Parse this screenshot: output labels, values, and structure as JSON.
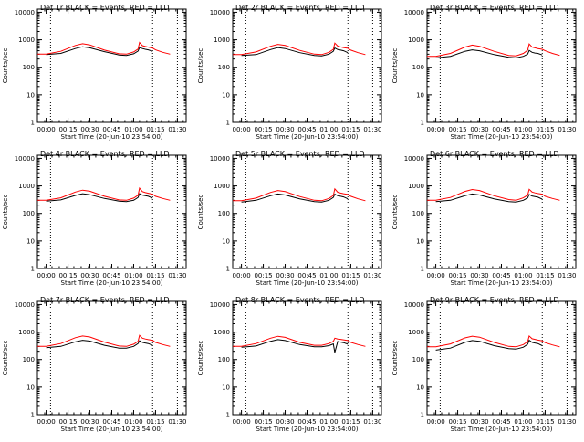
{
  "chart_data": [
    {
      "type": "line",
      "title": "Det 1r BLACK = Events, RED = LLD",
      "xlabel": "Start Time (20-Jun-10 23:54:00)",
      "ylabel": "Counts/sec",
      "xlim": [
        "23:54",
        "01:36"
      ],
      "ylim": [
        1,
        13000
      ],
      "yscale": "log",
      "x_ticks": [
        "00:00",
        "00:15",
        "00:30",
        "00:45",
        "01:00",
        "01:15",
        "01:30"
      ],
      "y_ticks": [
        "1",
        "10",
        "100",
        "1000",
        "10000"
      ],
      "vlines": [
        "00:03",
        "01:13",
        "01:30"
      ],
      "x": [
        "23:54",
        "00:00",
        "00:10",
        "00:20",
        "00:25",
        "00:30",
        "00:40",
        "00:50",
        "00:55",
        "01:00",
        "01:03",
        "01:04",
        "01:06",
        "01:08",
        "01:10",
        "01:13",
        "01:15",
        "01:20",
        "01:25"
      ],
      "series": [
        {
          "values": [
            null,
            290,
            320,
            480,
            560,
            510,
            370,
            280,
            270,
            310,
            390,
            520,
            480,
            450,
            430,
            380,
            null,
            null,
            null
          ]
        },
        {
          "values": [
            300,
            300,
            380,
            620,
            720,
            650,
            420,
            310,
            300,
            360,
            460,
            800,
            610,
            570,
            540,
            500,
            430,
            350,
            300
          ]
        }
      ]
    },
    {
      "type": "line",
      "title": "Det 2r BLACK = Events, RED = LLD",
      "xlabel": "Start Time (20-Jun-10 23:54:00)",
      "ylabel": "Counts/sec",
      "xlim": [
        "23:54",
        "01:36"
      ],
      "ylim": [
        1,
        13000
      ],
      "yscale": "log",
      "x_ticks": [
        "00:00",
        "00:15",
        "00:30",
        "00:45",
        "01:00",
        "01:15",
        "01:30"
      ],
      "y_ticks": [
        "1",
        "10",
        "100",
        "1000",
        "10000"
      ],
      "vlines": [
        "00:03",
        "01:13",
        "01:30"
      ],
      "x": [
        "23:54",
        "00:00",
        "00:10",
        "00:20",
        "00:25",
        "00:30",
        "00:40",
        "00:50",
        "00:55",
        "01:00",
        "01:03",
        "01:04",
        "01:06",
        "01:08",
        "01:10",
        "01:13",
        "01:15",
        "01:20",
        "01:25"
      ],
      "series": [
        {
          "values": [
            null,
            270,
            290,
            440,
            520,
            480,
            340,
            270,
            260,
            300,
            380,
            500,
            440,
            420,
            400,
            340,
            null,
            null,
            null
          ]
        },
        {
          "values": [
            290,
            290,
            360,
            580,
            680,
            620,
            410,
            300,
            290,
            350,
            450,
            760,
            590,
            550,
            520,
            490,
            420,
            340,
            290
          ]
        }
      ]
    },
    {
      "type": "line",
      "title": "Det 3r BLACK = Events, RED = LLD",
      "xlabel": "Start Time (20-Jun-10 23:54:00)",
      "ylabel": "Counts/sec",
      "xlim": [
        "23:54",
        "01:36"
      ],
      "ylim": [
        1,
        13000
      ],
      "yscale": "log",
      "x_ticks": [
        "00:00",
        "00:15",
        "00:30",
        "00:45",
        "01:00",
        "01:15",
        "01:30"
      ],
      "y_ticks": [
        "1",
        "10",
        "100",
        "1000",
        "10000"
      ],
      "vlines": [
        "00:03",
        "01:13",
        "01:30"
      ],
      "x": [
        "23:54",
        "00:00",
        "00:10",
        "00:20",
        "00:25",
        "00:30",
        "00:40",
        "00:50",
        "00:55",
        "01:00",
        "01:03",
        "01:04",
        "01:06",
        "01:08",
        "01:10",
        "01:13",
        "01:15",
        "01:20",
        "01:25"
      ],
      "series": [
        {
          "values": [
            null,
            220,
            250,
            380,
            430,
            400,
            290,
            230,
            220,
            250,
            300,
            410,
            350,
            330,
            320,
            280,
            null,
            null,
            null
          ]
        },
        {
          "values": [
            250,
            250,
            320,
            540,
            640,
            580,
            380,
            270,
            260,
            320,
            420,
            700,
            540,
            510,
            480,
            450,
            400,
            320,
            270
          ]
        }
      ]
    },
    {
      "type": "line",
      "title": "Det 4r BLACK = Events, RED = LLD",
      "xlabel": "Start Time (20-Jun-10 23:54:00)",
      "ylabel": "Counts/sec",
      "xlim": [
        "23:54",
        "01:36"
      ],
      "ylim": [
        1,
        13000
      ],
      "yscale": "log",
      "x_ticks": [
        "00:00",
        "00:15",
        "00:30",
        "00:45",
        "01:00",
        "01:15",
        "01:30"
      ],
      "y_ticks": [
        "1",
        "10",
        "100",
        "1000",
        "10000"
      ],
      "vlines": [
        "00:03",
        "01:13",
        "01:30"
      ],
      "x": [
        "23:54",
        "00:00",
        "00:10",
        "00:20",
        "00:25",
        "00:30",
        "00:40",
        "00:50",
        "00:55",
        "01:00",
        "01:03",
        "01:04",
        "01:06",
        "01:08",
        "01:10",
        "01:13",
        "01:15",
        "01:20",
        "01:25"
      ],
      "series": [
        {
          "values": [
            null,
            280,
            310,
            450,
            520,
            480,
            350,
            280,
            270,
            300,
            380,
            520,
            460,
            440,
            420,
            360,
            null,
            null,
            null
          ]
        },
        {
          "values": [
            300,
            300,
            370,
            600,
            700,
            640,
            420,
            310,
            300,
            360,
            460,
            830,
            620,
            570,
            540,
            500,
            420,
            350,
            300
          ]
        }
      ]
    },
    {
      "type": "line",
      "title": "Det 5r BLACK = Events, RED = LLD",
      "xlabel": "Start Time (20-Jun-10 23:54:00)",
      "ylabel": "Counts/sec",
      "xlim": [
        "23:54",
        "01:36"
      ],
      "ylim": [
        1,
        13000
      ],
      "yscale": "log",
      "x_ticks": [
        "00:00",
        "00:15",
        "00:30",
        "00:45",
        "01:00",
        "01:15",
        "01:30"
      ],
      "y_ticks": [
        "1",
        "10",
        "100",
        "1000",
        "10000"
      ],
      "vlines": [
        "00:03",
        "01:13",
        "01:30"
      ],
      "x": [
        "23:54",
        "00:00",
        "00:10",
        "00:20",
        "00:25",
        "00:30",
        "00:40",
        "00:50",
        "00:55",
        "01:00",
        "01:03",
        "01:04",
        "01:06",
        "01:08",
        "01:10",
        "01:13",
        "01:15",
        "01:20",
        "01:25"
      ],
      "series": [
        {
          "values": [
            null,
            260,
            300,
            440,
            510,
            470,
            340,
            270,
            260,
            300,
            380,
            500,
            440,
            420,
            400,
            340,
            null,
            null,
            null
          ]
        },
        {
          "values": [
            290,
            290,
            360,
            580,
            680,
            620,
            410,
            300,
            290,
            350,
            450,
            780,
            590,
            550,
            520,
            490,
            420,
            340,
            290
          ]
        }
      ]
    },
    {
      "type": "line",
      "title": "Det 6r BLACK = Events, RED = LLD",
      "xlabel": "Start Time (20-Jun-10 23:54:00)",
      "ylabel": "Counts/sec",
      "xlim": [
        "23:54",
        "01:36"
      ],
      "ylim": [
        1,
        13000
      ],
      "yscale": "log",
      "x_ticks": [
        "00:00",
        "00:15",
        "00:30",
        "00:45",
        "01:00",
        "01:15",
        "01:30"
      ],
      "y_ticks": [
        "1",
        "10",
        "100",
        "1000",
        "10000"
      ],
      "vlines": [
        "00:03",
        "01:13",
        "01:30"
      ],
      "x": [
        "23:54",
        "00:00",
        "00:10",
        "00:20",
        "00:25",
        "00:30",
        "00:40",
        "00:50",
        "00:55",
        "01:00",
        "01:03",
        "01:04",
        "01:06",
        "01:08",
        "01:10",
        "01:13",
        "01:15",
        "01:20",
        "01:25"
      ],
      "series": [
        {
          "values": [
            null,
            270,
            300,
            440,
            510,
            470,
            340,
            270,
            260,
            300,
            370,
            490,
            430,
            410,
            390,
            330,
            null,
            null,
            null
          ]
        },
        {
          "values": [
            300,
            300,
            380,
            630,
            740,
            680,
            440,
            320,
            300,
            370,
            470,
            750,
            600,
            560,
            530,
            500,
            420,
            350,
            300
          ]
        }
      ]
    },
    {
      "type": "line",
      "title": "Det 7r BLACK = Events, RED = LLD",
      "xlabel": "Start Time (20-Jun-10 23:54:00)",
      "ylabel": "Counts/sec",
      "xlim": [
        "23:54",
        "01:36"
      ],
      "ylim": [
        1,
        13000
      ],
      "yscale": "log",
      "x_ticks": [
        "00:00",
        "00:15",
        "00:30",
        "00:45",
        "01:00",
        "01:15",
        "01:30"
      ],
      "y_ticks": [
        "1",
        "10",
        "100",
        "1000",
        "10000"
      ],
      "vlines": [
        "00:03",
        "01:13",
        "01:30"
      ],
      "x": [
        "23:54",
        "00:00",
        "00:10",
        "00:20",
        "00:25",
        "00:30",
        "00:40",
        "00:50",
        "00:55",
        "01:00",
        "01:03",
        "01:04",
        "01:06",
        "01:08",
        "01:10",
        "01:13",
        "01:15",
        "01:20",
        "01:25"
      ],
      "series": [
        {
          "values": [
            null,
            270,
            300,
            440,
            500,
            470,
            330,
            260,
            260,
            300,
            380,
            480,
            420,
            400,
            380,
            330,
            null,
            null,
            null
          ]
        },
        {
          "values": [
            300,
            300,
            380,
            620,
            720,
            660,
            430,
            310,
            300,
            360,
            460,
            760,
            600,
            560,
            530,
            500,
            420,
            350,
            300
          ]
        }
      ]
    },
    {
      "type": "line",
      "title": "Det 8r BLACK = Events, RED = LLD",
      "xlabel": "Start Time (20-Jun-10 23:54:00)",
      "ylabel": "Counts/sec",
      "xlim": [
        "23:54",
        "01:36"
      ],
      "ylim": [
        1,
        13000
      ],
      "yscale": "log",
      "x_ticks": [
        "00:00",
        "00:15",
        "00:30",
        "00:45",
        "01:00",
        "01:15",
        "01:30"
      ],
      "y_ticks": [
        "1",
        "10",
        "100",
        "1000",
        "10000"
      ],
      "vlines": [
        "00:03",
        "01:13",
        "01:30"
      ],
      "x": [
        "23:54",
        "00:00",
        "00:10",
        "00:20",
        "00:25",
        "00:30",
        "00:40",
        "00:50",
        "00:55",
        "01:00",
        "01:03",
        "01:04",
        "01:06",
        "01:08",
        "01:10",
        "01:13",
        "01:15",
        "01:20",
        "01:25"
      ],
      "series": [
        {
          "values": [
            null,
            280,
            310,
            460,
            530,
            490,
            350,
            290,
            290,
            320,
            370,
            180,
            450,
            430,
            410,
            360,
            null,
            null,
            null
          ]
        },
        {
          "values": [
            300,
            300,
            380,
            600,
            700,
            640,
            420,
            330,
            330,
            380,
            460,
            600,
            560,
            540,
            520,
            490,
            420,
            350,
            300
          ]
        }
      ]
    },
    {
      "type": "line",
      "title": "Det 9r BLACK = Events, RED = LLD",
      "xlabel": "Start Time (20-Jun-10 23:54:00)",
      "ylabel": "Counts/sec",
      "xlim": [
        "23:54",
        "01:36"
      ],
      "ylim": [
        1,
        13000
      ],
      "yscale": "log",
      "x_ticks": [
        "00:00",
        "00:15",
        "00:30",
        "00:45",
        "01:00",
        "01:15",
        "01:30"
      ],
      "y_ticks": [
        "1",
        "10",
        "100",
        "1000",
        "10000"
      ],
      "vlines": [
        "00:03",
        "01:13",
        "01:30"
      ],
      "x": [
        "23:54",
        "00:00",
        "00:10",
        "00:20",
        "00:25",
        "00:30",
        "00:40",
        "00:50",
        "00:55",
        "01:00",
        "01:03",
        "01:04",
        "01:06",
        "01:08",
        "01:10",
        "01:13",
        "01:15",
        "01:20",
        "01:25"
      ],
      "series": [
        {
          "values": [
            null,
            220,
            260,
            420,
            490,
            460,
            320,
            250,
            240,
            280,
            360,
            500,
            420,
            400,
            380,
            320,
            null,
            null,
            null
          ]
        },
        {
          "values": [
            290,
            290,
            370,
            610,
            710,
            650,
            420,
            300,
            290,
            350,
            450,
            720,
            570,
            540,
            510,
            480,
            410,
            340,
            290
          ]
        }
      ]
    }
  ],
  "colors": {
    "events": "#000000",
    "lld": "#ff0000",
    "axes": "#000000",
    "background": "#ffffff"
  }
}
